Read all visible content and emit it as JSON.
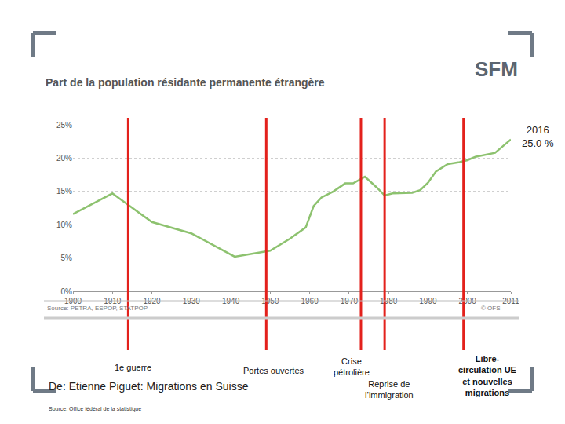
{
  "chart_data": {
    "type": "line",
    "title": "Part de la population résidante permanente étrangère",
    "x": [
      1900,
      1910,
      1920,
      1930,
      1941,
      1950,
      1955,
      1959,
      1961,
      1963,
      1966,
      1969,
      1971,
      1974,
      1977,
      1979,
      1981,
      1986,
      1988,
      1990,
      1992,
      1995,
      1998,
      2000,
      2002,
      2005,
      2007,
      2009,
      2011
    ],
    "values": [
      11.6,
      14.7,
      10.4,
      8.7,
      5.2,
      6.1,
      7.9,
      9.6,
      12.8,
      14.1,
      15.0,
      16.2,
      16.2,
      17.2,
      15.6,
      14.4,
      14.7,
      14.8,
      15.2,
      16.3,
      18.0,
      19.1,
      19.4,
      19.7,
      20.2,
      20.6,
      20.8,
      21.8,
      22.8
    ],
    "color": "#8dc26f",
    "xlim": [
      1900,
      2011
    ],
    "xticks": [
      1900,
      1910,
      1920,
      1930,
      1940,
      1950,
      1960,
      1970,
      1980,
      1990,
      2000,
      2011
    ],
    "ylim": [
      0,
      25
    ],
    "yticks": [
      {
        "value": 0,
        "label": "0%"
      },
      {
        "value": 5,
        "label": "5%"
      },
      {
        "value": 10,
        "label": "10%"
      },
      {
        "value": 15,
        "label": "15%"
      },
      {
        "value": 20,
        "label": "20%"
      },
      {
        "value": 25,
        "label": "25%"
      }
    ],
    "grid": true,
    "source": "Source: PETRA, ESPOP, STATPOP",
    "copyright": "© OFS",
    "events": [
      {
        "x": 1914,
        "lines": [
          "1e guerre"
        ],
        "color": "#e3211c"
      },
      {
        "x": 1949,
        "lines": [
          "Portes ouvertes"
        ],
        "color": "#e3211c"
      },
      {
        "x": 1973,
        "lines": [
          "Crise",
          "pétrolière"
        ],
        "color": "#e3211c"
      },
      {
        "x": 1979,
        "lines": [
          "Reprise de",
          "l’immigration"
        ],
        "color": "#e3211c"
      },
      {
        "x": 1999,
        "lines": [
          "Libre-",
          "circulation UE",
          "et nouvelles",
          "migrations"
        ],
        "color": "#e3211c"
      }
    ],
    "annotations": [
      {
        "lines": [
          "2016",
          "25.0 %"
        ]
      }
    ]
  },
  "slide": {
    "logo": "SFM",
    "reference": "De: Etienne Piguet: Migrations en Suisse",
    "footnote": "Source: Office fédéral de la statistique"
  }
}
